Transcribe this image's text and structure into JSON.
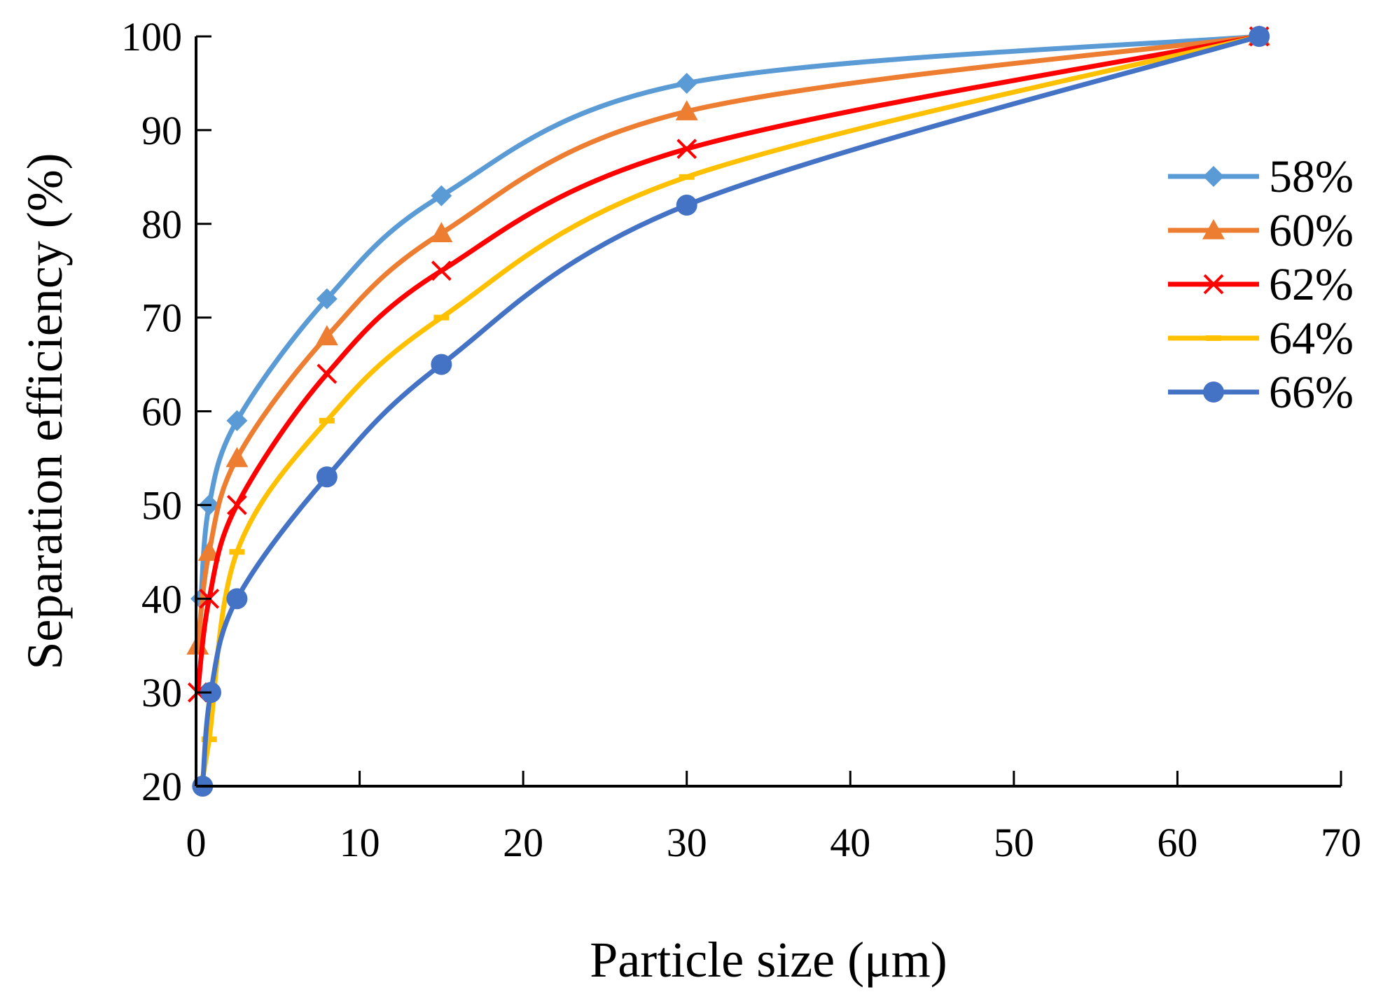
{
  "chart_data": {
    "type": "line",
    "title": "",
    "xlabel": "Particle size (μm)",
    "ylabel": "Separation efficiency (%)",
    "xlim": [
      0,
      70
    ],
    "ylim": [
      20,
      100
    ],
    "xticks": [
      0,
      10,
      20,
      30,
      40,
      50,
      60,
      70
    ],
    "yticks": [
      20,
      30,
      40,
      50,
      60,
      70,
      80,
      90,
      100
    ],
    "grid": false,
    "legend_position": "right",
    "series": [
      {
        "name": "58%",
        "color": "#5B9BD5",
        "marker": "diamond",
        "x": [
          0.3,
          0.8,
          2.5,
          8,
          15,
          30,
          65
        ],
        "y": [
          40,
          50,
          59,
          72,
          83,
          95,
          100
        ]
      },
      {
        "name": "60%",
        "color": "#ED7D31",
        "marker": "triangle",
        "x": [
          0.1,
          0.8,
          2.5,
          8,
          15,
          30,
          65
        ],
        "y": [
          35,
          45,
          55,
          68,
          79,
          92,
          100
        ]
      },
      {
        "name": "62%",
        "color": "#FF0000",
        "marker": "x",
        "x": [
          0.1,
          0.8,
          2.5,
          8,
          15,
          30,
          65
        ],
        "y": [
          30,
          40,
          50,
          64,
          75,
          88,
          100
        ]
      },
      {
        "name": "64%",
        "color": "#FFC000",
        "marker": "dash",
        "x": [
          0.3,
          0.8,
          2.5,
          8,
          15,
          30,
          65
        ],
        "y": [
          20,
          25,
          45,
          59,
          70,
          85,
          100
        ]
      },
      {
        "name": "66%",
        "color": "#4472C4",
        "marker": "circle",
        "x": [
          0.4,
          0.9,
          2.5,
          8,
          15,
          30,
          65
        ],
        "y": [
          20,
          30,
          40,
          53,
          65,
          82,
          100
        ]
      }
    ]
  }
}
